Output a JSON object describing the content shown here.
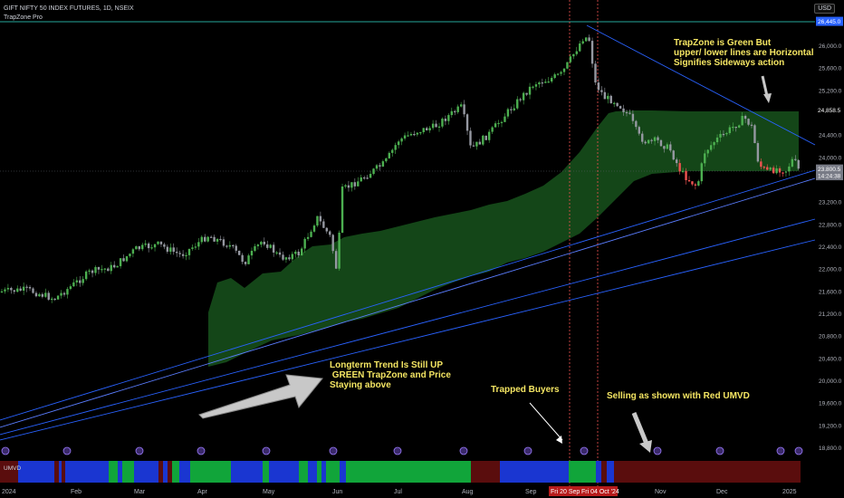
{
  "header": {
    "symbol_title": "GIFT NIFTY 50 INDEX FUTURES, 1D, NSEIX",
    "indicator_name": "TrapZone Pro",
    "currency_button": "USD",
    "panel_label": "UMVD"
  },
  "annotations": {
    "sideways": "TrapZone is Green But\nupper/ lower lines are Horizontal\nSignifies Sideways action",
    "trend": "Longterm Trend Is Still UP\n GREEN TrapZone and Price\nStaying above",
    "trapped": "Trapped Buyers",
    "selling": "Selling as shown with Red UMVD"
  },
  "price_axis": {
    "labels": [
      "26,000.0",
      "25,600.0",
      "25,200.0",
      "24,400.0",
      "24,000.0",
      "23,200.0",
      "22,800.0",
      "22,400.0",
      "22,000.0",
      "21,600.0",
      "21,200.0",
      "20,800.0",
      "20,400.0",
      "20,000.0",
      "19,600.0",
      "19,200.0",
      "18,800.0"
    ],
    "values": [
      26000,
      25600,
      25200,
      24400,
      24000,
      23200,
      22800,
      22400,
      22000,
      21600,
      21200,
      20800,
      20400,
      20000,
      19600,
      19200,
      18800
    ],
    "tags": [
      {
        "text": "26,445.0",
        "value": 26445,
        "bg": "#2962ff",
        "fg": "#ffffff"
      },
      {
        "text": "24,858.5",
        "value": 24858.5,
        "bg": "#000000",
        "fg": "#ffffff"
      },
      {
        "text": "23,842.5",
        "value": 23842.5,
        "bg": "#000000",
        "fg": "#ffffff"
      },
      {
        "text": "23,800.5",
        "value": 23800.5,
        "bg": "#787b86",
        "fg": "#ffffff"
      },
      {
        "text": "14:24:38",
        "value": 23680,
        "bg": "#787b86",
        "fg": "#ffffff"
      }
    ]
  },
  "time_axis": {
    "labels": [
      "2024",
      "Feb",
      "Mar",
      "Apr",
      "May",
      "Jun",
      "Jul",
      "Aug",
      "Sep",
      "Nov",
      "Dec",
      "2025"
    ],
    "highlight_labels": [
      "Fri 20 Sep '24",
      "Fri 04 Oct '24"
    ]
  },
  "colors": {
    "up_candle": "#4caf50",
    "down_candle": "#9598a1",
    "red_candle": "#ef5350",
    "trapzone_fill": "#1b5e20",
    "trendline": "#2962ff",
    "umvd_blue": "#1a36d1",
    "umvd_green": "#11a53a",
    "umvd_red": "#5a0d0d",
    "annotation_text": "#f5e663"
  }
}
